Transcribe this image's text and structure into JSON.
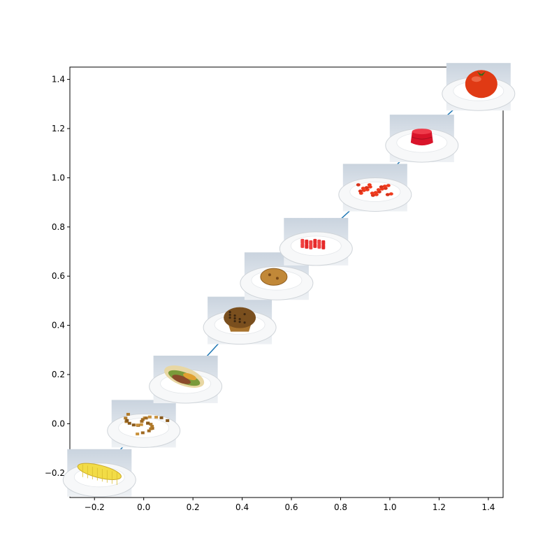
{
  "chart_data": {
    "type": "line",
    "title": "",
    "xlabel": "",
    "ylabel": "",
    "xlim": [
      -0.3,
      1.46
    ],
    "ylim": [
      -0.3,
      1.45
    ],
    "grid": false,
    "line_color": "#1f77b4",
    "series": [
      {
        "x": [
          -0.18,
          0.0,
          0.17,
          0.39,
          0.54,
          0.7,
          0.94,
          1.13,
          1.36
        ],
        "y": [
          -0.2,
          0.0,
          0.18,
          0.42,
          0.6,
          0.74,
          0.96,
          1.16,
          1.37
        ]
      }
    ],
    "x_ticks": [
      -0.2,
      0.0,
      0.2,
      0.4,
      0.6,
      0.8,
      1.0,
      1.2,
      1.4
    ],
    "x_tick_labels": [
      "−0.2",
      "0.0",
      "0.2",
      "0.4",
      "0.6",
      "0.8",
      "1.0",
      "1.2",
      "1.4"
    ],
    "y_ticks": [
      -0.2,
      0.0,
      0.2,
      0.4,
      0.6,
      0.8,
      1.0,
      1.2,
      1.4
    ],
    "y_tick_labels": [
      "−0.2",
      "0.0",
      "0.2",
      "0.4",
      "0.6",
      "0.8",
      "1.0",
      "1.2",
      "1.4"
    ],
    "markers": [
      {
        "icon": "corn-plate-icon",
        "x": -0.18,
        "y": -0.2
      },
      {
        "icon": "hash-browns-plate-icon",
        "x": 0.0,
        "y": 0.0
      },
      {
        "icon": "taco-plate-icon",
        "x": 0.17,
        "y": 0.18
      },
      {
        "icon": "muffin-plate-icon",
        "x": 0.39,
        "y": 0.42
      },
      {
        "icon": "cookie-plate-icon",
        "x": 0.54,
        "y": 0.6
      },
      {
        "icon": "gummy-candy-plate-icon",
        "x": 0.7,
        "y": 0.74
      },
      {
        "icon": "red-beans-plate-icon",
        "x": 0.94,
        "y": 0.96
      },
      {
        "icon": "jello-plate-icon",
        "x": 1.13,
        "y": 1.16
      },
      {
        "icon": "tomato-plate-icon",
        "x": 1.36,
        "y": 1.37
      }
    ]
  }
}
